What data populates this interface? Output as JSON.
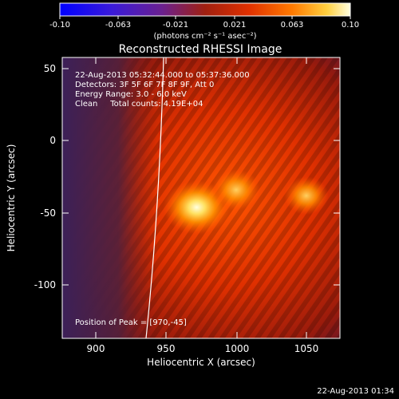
{
  "colorbar": {
    "ticks": [
      "-0.10",
      "-0.063",
      "-0.021",
      "0.021",
      "0.063",
      "0.10"
    ],
    "units": "(photons cm⁻² s⁻¹ asec⁻²)"
  },
  "title": "Reconstructed RHESSI Image",
  "info": {
    "line1": "22-Aug-2013 05:32:44.000 to 05:37:36.000",
    "line2": "Detectors: 3F 5F 6F 7F 8F 9F, Att 0",
    "line3": "Energy Range: 3.0 - 6.0 keV",
    "line4": "Clean     Total counts: 4.19E+04"
  },
  "peak": "Position of Peak = [970,-45]",
  "xaxis": {
    "label": "Heliocentric X (arcsec)",
    "ticks": [
      "900",
      "950",
      "1000",
      "1050"
    ]
  },
  "yaxis": {
    "label": "Heliocentric Y (arcsec)",
    "ticks": [
      "50",
      "0",
      "-50",
      "-100"
    ]
  },
  "footer": "22-Aug-2013 01:34",
  "colors": {
    "background": "#000000",
    "text": "#ffffff"
  },
  "image_data": {
    "type": "heatmap",
    "x_range": [
      878,
      1068
    ],
    "y_range": [
      -135,
      58
    ],
    "value_range": [
      -0.1,
      0.1
    ],
    "peak_position": [
      970,
      -45
    ],
    "sources": [
      {
        "x": 970,
        "y": -45,
        "value": 0.1
      },
      {
        "x": 997,
        "y": -33,
        "value": 0.07
      },
      {
        "x": 1045,
        "y": -37,
        "value": 0.065
      }
    ]
  }
}
